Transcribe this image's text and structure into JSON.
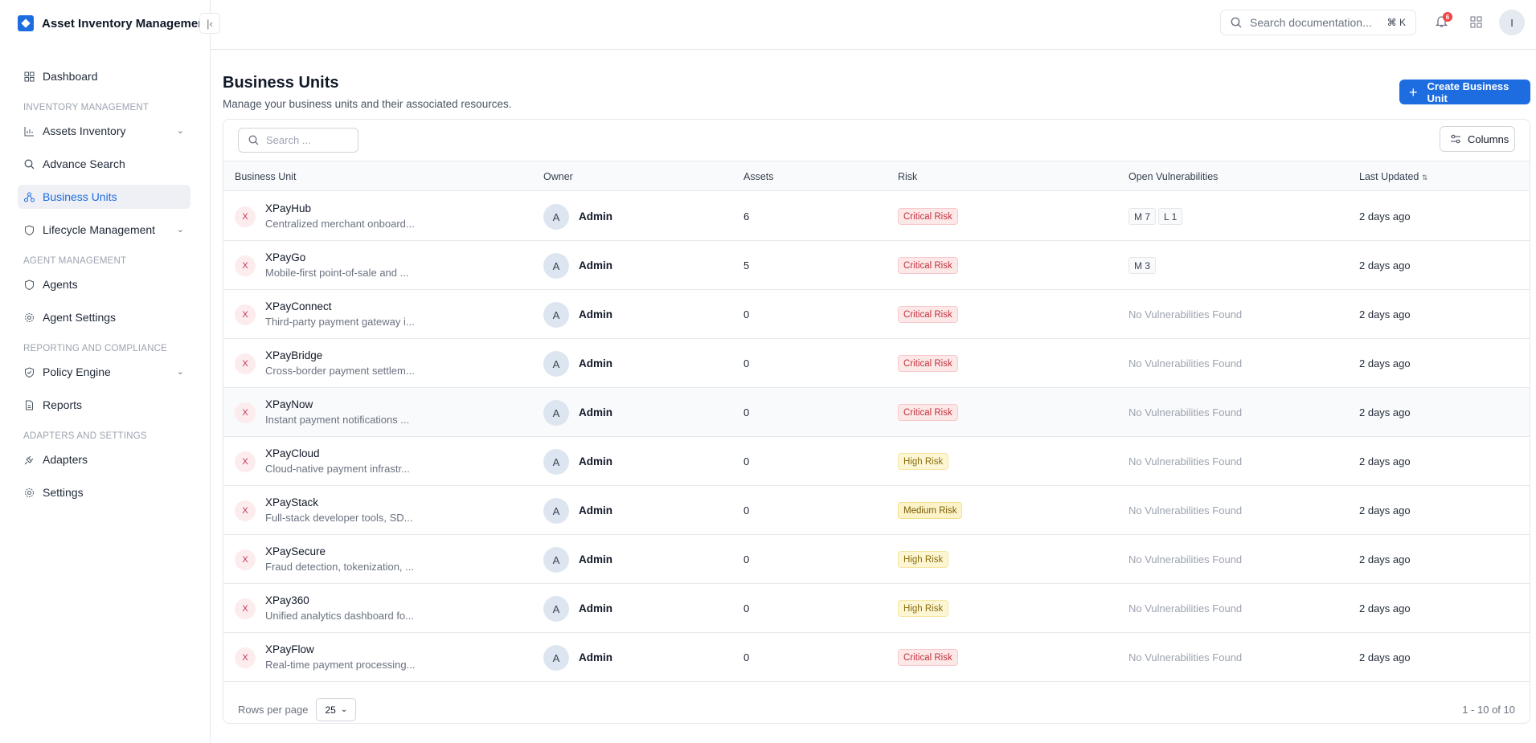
{
  "app": {
    "title": "Asset Inventory Management"
  },
  "sidebar": {
    "items": [
      {
        "label": "Dashboard"
      },
      {
        "section": "INVENTORY MANAGEMENT"
      },
      {
        "label": "Assets Inventory"
      },
      {
        "label": "Advance Search"
      },
      {
        "label": "Business Units"
      },
      {
        "label": "Lifecycle Management"
      },
      {
        "section": "AGENT MANAGEMENT"
      },
      {
        "label": "Agents"
      },
      {
        "label": "Agent Settings"
      },
      {
        "section": "REPORTING AND COMPLIANCE"
      },
      {
        "label": "Policy Engine"
      },
      {
        "label": "Reports"
      },
      {
        "section": "ADAPTERS AND SETTINGS"
      },
      {
        "label": "Adapters"
      },
      {
        "label": "Settings"
      }
    ]
  },
  "header": {
    "search_placeholder": "Search documentation...",
    "shortcut": "⌘ K",
    "notification_count": "6",
    "user_initial": "I"
  },
  "page": {
    "title": "Business Units",
    "subtitle": "Manage your business units and their associated resources.",
    "create_label": "Create Business Unit"
  },
  "table": {
    "search_placeholder": "Search ...",
    "columns_label": "Columns",
    "headers": [
      "Business Unit",
      "Owner",
      "Assets",
      "Risk",
      "Open Vulnerabilities",
      "Last Updated"
    ],
    "rows": [
      {
        "icon": "X",
        "name": "XPayHub",
        "desc": "Centralized merchant onboard...",
        "owner_initial": "A",
        "owner": "Admin",
        "assets": "6",
        "risk": "Critical Risk",
        "risk_level": "critical",
        "vulns": [
          "M 7",
          "L 1"
        ],
        "updated": "2 days ago"
      },
      {
        "icon": "X",
        "name": "XPayGo",
        "desc": "Mobile-first point-of-sale and ...",
        "owner_initial": "A",
        "owner": "Admin",
        "assets": "5",
        "risk": "Critical Risk",
        "risk_level": "critical",
        "vulns": [
          "M 3"
        ],
        "updated": "2 days ago"
      },
      {
        "icon": "X",
        "name": "XPayConnect",
        "desc": "Third-party payment gateway i...",
        "owner_initial": "A",
        "owner": "Admin",
        "assets": "0",
        "risk": "Critical Risk",
        "risk_level": "critical",
        "vulns_text": "No Vulnerabilities Found",
        "updated": "2 days ago"
      },
      {
        "icon": "X",
        "name": "XPayBridge",
        "desc": "Cross-border payment settlem...",
        "owner_initial": "A",
        "owner": "Admin",
        "assets": "0",
        "risk": "Critical Risk",
        "risk_level": "critical",
        "vulns_text": "No Vulnerabilities Found",
        "updated": "2 days ago"
      },
      {
        "icon": "X",
        "name": "XPayNow",
        "desc": "Instant payment notifications ...",
        "owner_initial": "A",
        "owner": "Admin",
        "assets": "0",
        "risk": "Critical Risk",
        "risk_level": "critical",
        "vulns_text": "No Vulnerabilities Found",
        "updated": "2 days ago"
      },
      {
        "icon": "X",
        "name": "XPayCloud",
        "desc": "Cloud-native payment infrastr...",
        "owner_initial": "A",
        "owner": "Admin",
        "assets": "0",
        "risk": "High Risk",
        "risk_level": "high",
        "vulns_text": "No Vulnerabilities Found",
        "updated": "2 days ago"
      },
      {
        "icon": "X",
        "name": "XPayStack",
        "desc": "Full-stack developer tools, SD...",
        "owner_initial": "A",
        "owner": "Admin",
        "assets": "0",
        "risk": "Medium Risk",
        "risk_level": "medium",
        "vulns_text": "No Vulnerabilities Found",
        "updated": "2 days ago"
      },
      {
        "icon": "X",
        "name": "XPaySecure",
        "desc": "Fraud detection, tokenization, ...",
        "owner_initial": "A",
        "owner": "Admin",
        "assets": "0",
        "risk": "High Risk",
        "risk_level": "high",
        "vulns_text": "No Vulnerabilities Found",
        "updated": "2 days ago"
      },
      {
        "icon": "X",
        "name": "XPay360",
        "desc": "Unified analytics dashboard fo...",
        "owner_initial": "A",
        "owner": "Admin",
        "assets": "0",
        "risk": "High Risk",
        "risk_level": "high",
        "vulns_text": "No Vulnerabilities Found",
        "updated": "2 days ago"
      },
      {
        "icon": "X",
        "name": "XPayFlow",
        "desc": "Real-time payment processing...",
        "owner_initial": "A",
        "owner": "Admin",
        "assets": "0",
        "risk": "Critical Risk",
        "risk_level": "critical",
        "vulns_text": "No Vulnerabilities Found",
        "updated": "2 days ago"
      }
    ],
    "rows_per_page_label": "Rows per page",
    "rows_per_page": "25",
    "pagination": "1 - 10 of 10"
  }
}
